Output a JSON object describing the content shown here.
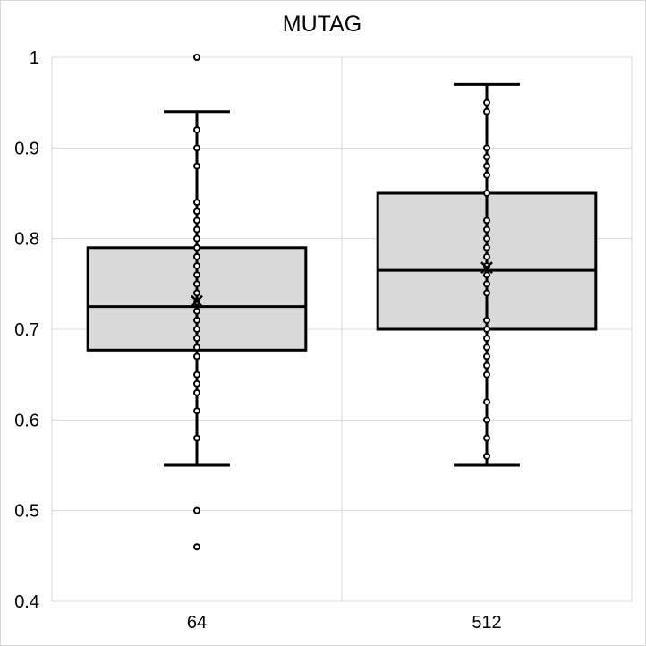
{
  "chart_data": {
    "type": "box",
    "title": "MUTAG",
    "xlabel": "",
    "ylabel": "",
    "ylim": [
      0.4,
      1.0
    ],
    "ytick_labels": [
      "0.4",
      "0.5",
      "0.6",
      "0.7",
      "0.8",
      "0.9",
      "1"
    ],
    "categories": [
      "64",
      "512"
    ],
    "grid": true,
    "boxes": [
      {
        "category": "64",
        "whisker_low": 0.55,
        "q1": 0.677,
        "median": 0.725,
        "q3": 0.79,
        "whisker_high": 0.94,
        "mean": 0.731,
        "points": [
          1.0,
          0.92,
          0.9,
          0.88,
          0.84,
          0.83,
          0.82,
          0.81,
          0.8,
          0.79,
          0.78,
          0.77,
          0.76,
          0.75,
          0.74,
          0.73,
          0.72,
          0.71,
          0.7,
          0.69,
          0.68,
          0.67,
          0.65,
          0.64,
          0.63,
          0.61,
          0.58,
          0.5,
          0.46
        ]
      },
      {
        "category": "512",
        "whisker_low": 0.55,
        "q1": 0.7,
        "median": 0.765,
        "q3": 0.85,
        "whisker_high": 0.97,
        "mean": 0.768,
        "points": [
          0.95,
          0.94,
          0.9,
          0.89,
          0.88,
          0.87,
          0.85,
          0.82,
          0.81,
          0.8,
          0.79,
          0.78,
          0.77,
          0.76,
          0.75,
          0.74,
          0.71,
          0.7,
          0.69,
          0.68,
          0.67,
          0.66,
          0.65,
          0.62,
          0.6,
          0.58,
          0.56
        ]
      }
    ]
  }
}
